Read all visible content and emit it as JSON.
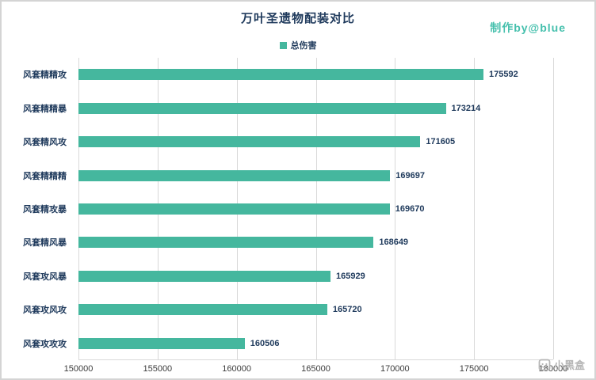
{
  "watermark": "制作by@blue",
  "brand": {
    "label": "小黑盒"
  },
  "chart_data": {
    "type": "bar",
    "orientation": "horizontal",
    "title": "万叶圣遗物配装对比",
    "legend": [
      "总伤害"
    ],
    "categories": [
      "风套精精攻",
      "风套精精暴",
      "风套精风攻",
      "风套精精精",
      "风套精攻暴",
      "风套精风暴",
      "风套攻风暴",
      "风套攻风攻",
      "风套攻攻攻"
    ],
    "values": [
      175592,
      173214,
      171605,
      169697,
      169670,
      168649,
      165929,
      165720,
      160506
    ],
    "xlim": [
      150000,
      180000
    ],
    "xticks": [
      150000,
      155000,
      160000,
      165000,
      170000,
      175000,
      180000
    ],
    "bar_color": "#45b79e",
    "grid_color": "#d9d9d9",
    "text_color": "#1f3a5c",
    "grid": true,
    "legend_position": "top"
  }
}
